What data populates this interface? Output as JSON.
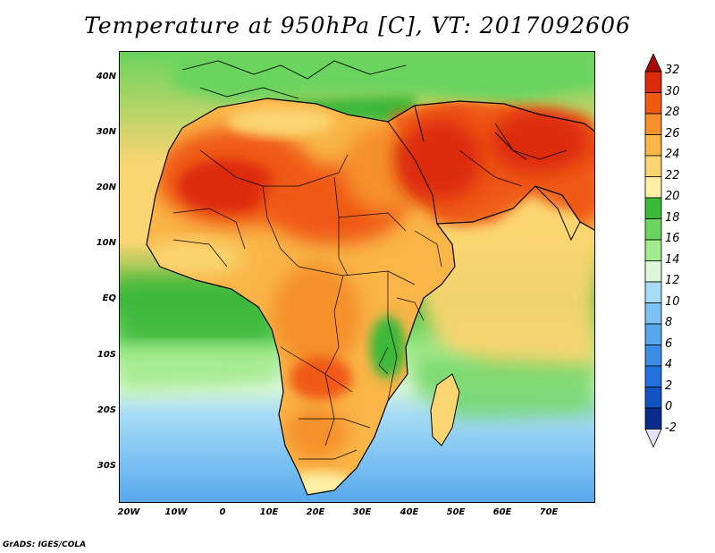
{
  "title": "Temperature at 950hPa [C], VT: 2017092606",
  "credit": "GrADS: IGES/COLA",
  "map": {
    "lat_labels": [
      "40N",
      "30N",
      "20N",
      "10N",
      "EQ",
      "10S",
      "20S",
      "30S"
    ],
    "lat_values": [
      40,
      30,
      20,
      10,
      0,
      -10,
      -20,
      -30
    ],
    "lon_labels": [
      "20W",
      "10W",
      "0",
      "10E",
      "20E",
      "30E",
      "40E",
      "50E",
      "60E",
      "70E"
    ],
    "lon_values": [
      -20,
      -10,
      0,
      10,
      20,
      30,
      40,
      50,
      60,
      70
    ],
    "extent": {
      "lon_min": -22,
      "lon_max": 80,
      "lat_min": -36,
      "lat_max": 45
    }
  },
  "colorbar": {
    "labels": [
      "32",
      "30",
      "28",
      "26",
      "24",
      "22",
      "20",
      "18",
      "16",
      "14",
      "12",
      "10",
      "8",
      "6",
      "4",
      "2",
      "0",
      "-2"
    ],
    "colors": [
      "#a50a0a",
      "#dc2a0a",
      "#f05a12",
      "#f5902a",
      "#f9b548",
      "#fbd571",
      "#fdf0a6",
      "#3cb83a",
      "#6bd45e",
      "#a2ea8c",
      "#dcf8d9",
      "#a8dcf4",
      "#7dc2f2",
      "#58a7ec",
      "#3b8ce4",
      "#2371dc",
      "#1252c2",
      "#0a2a8c",
      "#e6e0f8"
    ]
  }
}
